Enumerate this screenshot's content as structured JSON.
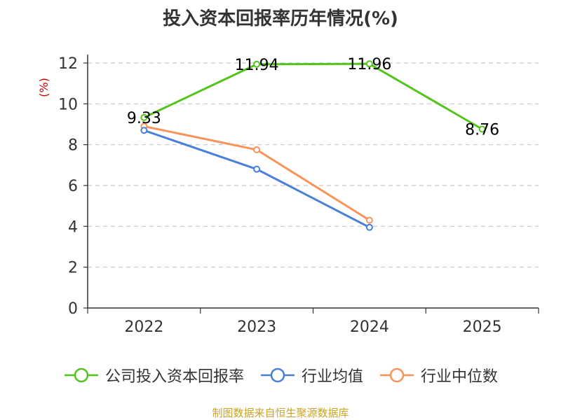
{
  "chart_data": {
    "type": "line",
    "title": "投入资本回报率历年情况(%)",
    "ylabel": "(%)",
    "xlabel": "",
    "categories": [
      "2022",
      "2023",
      "2024",
      "2025"
    ],
    "ylim": [
      0,
      12
    ],
    "yticks": [
      0,
      2,
      4,
      6,
      8,
      10,
      12
    ],
    "grid": true,
    "legend_position": "bottom",
    "series": [
      {
        "name": "公司投入资本回报率",
        "color": "#52c41a",
        "values": [
          9.33,
          11.94,
          11.96,
          8.76
        ],
        "labels": [
          "9.33",
          "11.94",
          "11.96",
          "8.76"
        ]
      },
      {
        "name": "行业均值",
        "color": "#4a7fdc",
        "values": [
          8.7,
          6.8,
          3.95,
          null
        ]
      },
      {
        "name": "行业中位数",
        "color": "#f8935a",
        "values": [
          8.9,
          7.75,
          4.3,
          null
        ]
      }
    ]
  },
  "source_note": "制图数据来自恒生聚源数据库"
}
